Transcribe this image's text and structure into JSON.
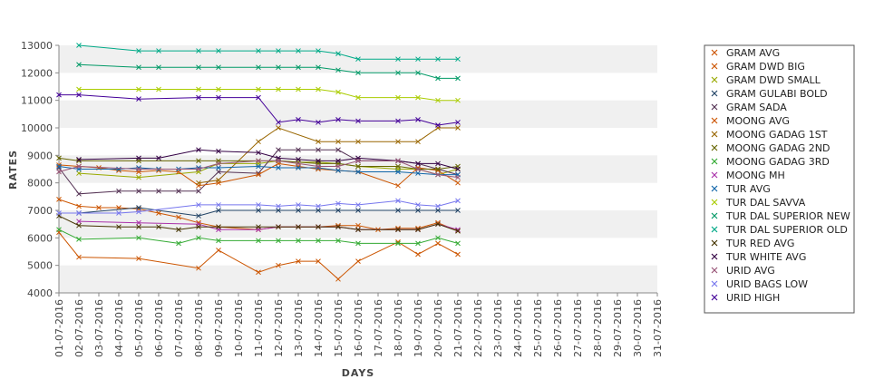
{
  "chart_data": {
    "type": "line",
    "title": "",
    "xlabel": "DAYS",
    "ylabel": "RATES",
    "ylim": [
      4000,
      13000
    ],
    "yticks": [
      4000,
      5000,
      6000,
      7000,
      8000,
      9000,
      10000,
      11000,
      12000,
      13000
    ],
    "x": [
      "01-07-2016",
      "02-07-2016",
      "03-07-2016",
      "04-07-2016",
      "05-07-2016",
      "06-07-2016",
      "07-07-2016",
      "08-07-2016",
      "09-07-2016",
      "10-07-2016",
      "11-07-2016",
      "12-07-2016",
      "13-07-2016",
      "14-07-2016",
      "15-07-2016",
      "16-07-2016",
      "17-07-2016",
      "18-07-2016",
      "19-07-2016",
      "20-07-2016",
      "21-07-2016",
      "22-07-2016",
      "23-07-2016",
      "24-07-2016",
      "25-07-2016",
      "26-07-2016",
      "27-07-2016",
      "28-07-2016",
      "29-07-2016",
      "30-07-2016",
      "31-07-2016"
    ],
    "grid": "alternating horizontal bands",
    "legend_position": "right",
    "series": [
      {
        "name": "GRAM AVG",
        "color": "#cc5500",
        "values": [
          7400,
          7150,
          7100,
          7100,
          7050,
          6900,
          6750,
          6550,
          6400,
          null,
          6300,
          6400,
          6400,
          6400,
          6450,
          6450,
          6300,
          6350,
          6350,
          6550,
          6250,
          null,
          null,
          null,
          null,
          null,
          null,
          null,
          null,
          null,
          null
        ]
      },
      {
        "name": "GRAM DWD BIG",
        "color": "#cc5500",
        "values": [
          6200,
          5300,
          null,
          null,
          5250,
          null,
          null,
          4900,
          5550,
          null,
          4750,
          5000,
          5150,
          5150,
          4500,
          5150,
          null,
          5850,
          5400,
          5800,
          5400,
          null,
          null,
          null,
          null,
          null,
          null,
          null,
          null,
          null,
          null
        ]
      },
      {
        "name": "GRAM DWD SMALL",
        "color": "#99aa00",
        "values": [
          null,
          8350,
          null,
          null,
          8200,
          null,
          null,
          8400,
          8700,
          null,
          8700,
          8800,
          8750,
          8750,
          8700,
          8600,
          null,
          8500,
          8500,
          8300,
          8500,
          null,
          null,
          null,
          null,
          null,
          null,
          null,
          null,
          null,
          null
        ]
      },
      {
        "name": "GRAM GULABI BOLD",
        "color": "#224466",
        "values": [
          null,
          6900,
          null,
          null,
          7100,
          null,
          null,
          6800,
          7000,
          null,
          7000,
          7000,
          7000,
          7000,
          7000,
          7000,
          null,
          7000,
          7000,
          7000,
          7000,
          null,
          null,
          null,
          null,
          null,
          null,
          null,
          null,
          null,
          null
        ]
      },
      {
        "name": "GRAM SADA",
        "color": "#553355",
        "values": [
          8550,
          7600,
          null,
          7700,
          7700,
          7700,
          7700,
          7700,
          8400,
          null,
          8350,
          9200,
          9200,
          9200,
          9200,
          8800,
          null,
          8800,
          8700,
          8500,
          8300,
          null,
          null,
          null,
          null,
          null,
          null,
          null,
          null,
          null,
          null
        ]
      },
      {
        "name": "MOONG AVG",
        "color": "#cc5500",
        "values": [
          8650,
          8600,
          8550,
          8450,
          8400,
          8450,
          8400,
          7900,
          8000,
          null,
          8300,
          8700,
          8600,
          8500,
          8450,
          8400,
          null,
          7900,
          8550,
          8450,
          8000,
          null,
          null,
          null,
          null,
          null,
          null,
          null,
          null,
          null,
          null
        ]
      },
      {
        "name": "MOONG GADAG 1ST",
        "color": "#996600",
        "values": [
          null,
          null,
          null,
          null,
          null,
          null,
          null,
          8000,
          8100,
          null,
          9500,
          10000,
          null,
          9500,
          9500,
          9500,
          null,
          9500,
          9500,
          10000,
          10000,
          null,
          null,
          null,
          null,
          null,
          null,
          null,
          null,
          null,
          null
        ]
      },
      {
        "name": "MOONG GADAG 2ND",
        "color": "#666600",
        "values": [
          8900,
          8800,
          null,
          null,
          8800,
          null,
          null,
          8800,
          8800,
          null,
          8800,
          8800,
          null,
          8700,
          8700,
          8600,
          null,
          8600,
          8500,
          8500,
          8600,
          null,
          null,
          null,
          null,
          null,
          null,
          null,
          null,
          null,
          null
        ]
      },
      {
        "name": "MOONG GADAG 3RD",
        "color": "#33aa33",
        "values": [
          6300,
          5950,
          null,
          null,
          6000,
          null,
          5800,
          6000,
          5900,
          null,
          5900,
          5900,
          5900,
          5900,
          5900,
          5800,
          null,
          5800,
          5800,
          6000,
          5800,
          null,
          null,
          null,
          null,
          null,
          null,
          null,
          null,
          null,
          null
        ]
      },
      {
        "name": "MOONG MH",
        "color": "#aa33aa",
        "values": [
          null,
          6600,
          null,
          null,
          6550,
          null,
          null,
          6500,
          6300,
          null,
          6300,
          6400,
          6400,
          6400,
          6400,
          6300,
          null,
          6300,
          6300,
          6500,
          6300,
          null,
          null,
          null,
          null,
          null,
          null,
          null,
          null,
          null,
          null
        ]
      },
      {
        "name": "TUR AVG",
        "color": "#1166aa",
        "values": [
          8600,
          8500,
          null,
          8500,
          8550,
          8500,
          8500,
          8550,
          8550,
          null,
          8600,
          8550,
          8550,
          8550,
          8450,
          8400,
          null,
          8400,
          8350,
          8300,
          8300,
          null,
          null,
          null,
          null,
          null,
          null,
          null,
          null,
          null,
          null
        ]
      },
      {
        "name": "TUR DAL SAVVA",
        "color": "#aacc00",
        "values": [
          null,
          11400,
          null,
          null,
          11400,
          11400,
          null,
          11400,
          11400,
          null,
          11400,
          11400,
          11400,
          11400,
          11300,
          11100,
          null,
          11100,
          11100,
          11000,
          11000,
          null,
          null,
          null,
          null,
          null,
          null,
          null,
          null,
          null,
          null
        ]
      },
      {
        "name": "TUR DAL SUPERIOR NEW",
        "color": "#009966",
        "values": [
          null,
          12300,
          null,
          null,
          12200,
          12200,
          null,
          12200,
          12200,
          null,
          12200,
          12200,
          12200,
          12200,
          12100,
          12000,
          null,
          12000,
          12000,
          11800,
          11800,
          null,
          null,
          null,
          null,
          null,
          null,
          null,
          null,
          null,
          null
        ]
      },
      {
        "name": "TUR DAL SUPERIOR OLD",
        "color": "#00aa88",
        "values": [
          null,
          13000,
          null,
          null,
          12800,
          12800,
          null,
          12800,
          12800,
          null,
          12800,
          12800,
          12800,
          12800,
          12700,
          12500,
          null,
          12500,
          12500,
          12500,
          12500,
          null,
          null,
          null,
          null,
          null,
          null,
          null,
          null,
          null,
          null
        ]
      },
      {
        "name": "TUR RED AVG",
        "color": "#443300",
        "values": [
          6800,
          6450,
          null,
          6400,
          6400,
          6400,
          6300,
          6400,
          6400,
          null,
          6400,
          6400,
          6400,
          6400,
          6400,
          6300,
          null,
          6300,
          6300,
          6500,
          6250,
          null,
          null,
          null,
          null,
          null,
          null,
          null,
          null,
          null,
          null
        ]
      },
      {
        "name": "TUR WHITE AVG",
        "color": "#330044",
        "values": [
          null,
          8850,
          null,
          null,
          8900,
          8900,
          null,
          9200,
          9150,
          null,
          9100,
          8900,
          8850,
          8800,
          8800,
          8900,
          null,
          8800,
          8700,
          8700,
          8500,
          null,
          null,
          null,
          null,
          null,
          null,
          null,
          null,
          null,
          null
        ]
      },
      {
        "name": "URID AVG",
        "color": "#995577",
        "values": [
          8400,
          8600,
          null,
          null,
          8500,
          null,
          null,
          8500,
          8700,
          null,
          8800,
          8800,
          8700,
          8600,
          8600,
          8800,
          null,
          8800,
          8500,
          8300,
          8200,
          null,
          null,
          null,
          null,
          null,
          null,
          null,
          null,
          null,
          null
        ]
      },
      {
        "name": "URID BAGS LOW",
        "color": "#7777ee",
        "values": [
          6900,
          6900,
          null,
          6900,
          6950,
          null,
          null,
          7200,
          7200,
          null,
          7200,
          7150,
          7200,
          7150,
          7250,
          7200,
          null,
          7350,
          7200,
          7150,
          7350,
          null,
          null,
          null,
          null,
          null,
          null,
          null,
          null,
          null,
          null
        ]
      },
      {
        "name": "URID HIGH",
        "color": "#440099",
        "values": [
          11200,
          11200,
          null,
          null,
          11050,
          null,
          null,
          11100,
          11100,
          null,
          11100,
          10200,
          10300,
          10200,
          10300,
          10250,
          null,
          10250,
          10300,
          10100,
          10200,
          null,
          null,
          null,
          null,
          null,
          null,
          null,
          null,
          null,
          null
        ]
      }
    ]
  }
}
